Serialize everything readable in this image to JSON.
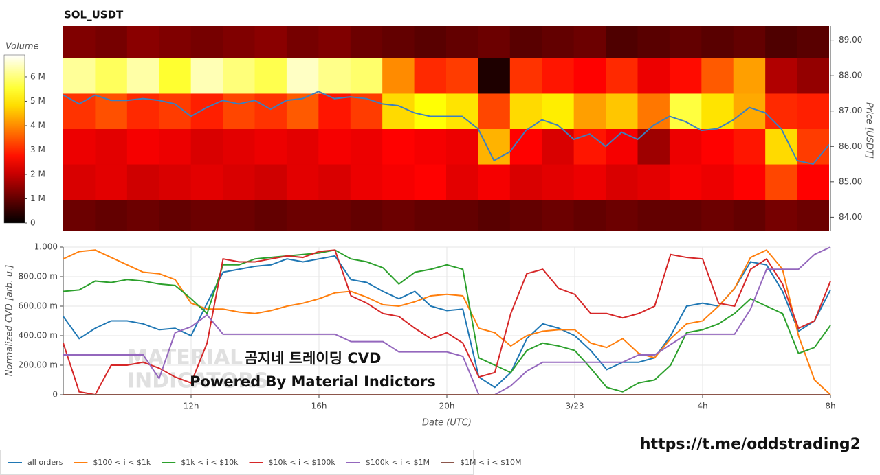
{
  "chart_data": [
    {
      "type": "heatmap",
      "title": "SOL_USDT",
      "colormap": "hot",
      "xlim": [
        8,
        32
      ],
      "ylim": [
        83.6,
        89.4
      ],
      "yticks": [
        {
          "value": 84,
          "label": "84.00"
        },
        {
          "value": 85,
          "label": "85.00"
        },
        {
          "value": 86,
          "label": "86.00"
        },
        {
          "value": 87,
          "label": "87.00"
        },
        {
          "value": 88,
          "label": "88.00"
        },
        {
          "value": 89,
          "label": "89.00"
        }
      ],
      "ylabel": "Price [USDT]",
      "x_bins": [
        8,
        9,
        10,
        11,
        12,
        13,
        14,
        15,
        16,
        17,
        18,
        19,
        20,
        21,
        22,
        23,
        24,
        25,
        26,
        27,
        28,
        29,
        30,
        31,
        32
      ],
      "y_bins": [
        83.5,
        84.5,
        85.5,
        86.5,
        87.5,
        88.5,
        89.5
      ],
      "values": [
        [
          1100000,
          1000000,
          1100000,
          1000000,
          1100000,
          1100000,
          1000000,
          1100000,
          1100000,
          1000000,
          1100000,
          1000000,
          1000000,
          900000,
          1000000,
          1100000,
          1000000,
          1100000,
          1000000,
          1000000,
          1100000,
          1000000,
          1200000,
          1100000
        ],
        [
          2200000,
          2300000,
          2100000,
          2200000,
          2300000,
          2200000,
          2100000,
          2300000,
          2200000,
          2400000,
          2500000,
          2600000,
          2300000,
          2500000,
          2200000,
          2300000,
          2400000,
          2200000,
          2300000,
          2500000,
          2400000,
          2600000,
          3300000,
          2600000
        ],
        [
          2400000,
          2300000,
          2500000,
          2400000,
          2200000,
          2300000,
          2400000,
          2300000,
          2500000,
          2400000,
          2600000,
          2500000,
          2400000,
          4400000,
          2600000,
          2200000,
          2800000,
          2500000,
          1600000,
          2400000,
          2600000,
          2800000,
          4800000,
          3200000
        ],
        [
          3100000,
          3400000,
          3000000,
          3200000,
          2900000,
          3300000,
          3100000,
          3500000,
          2800000,
          3200000,
          4800000,
          5200000,
          4900000,
          3300000,
          4800000,
          5000000,
          4200000,
          4600000,
          3800000,
          5600000,
          4900000,
          4300000,
          3000000,
          2900000
        ],
        [
          6200000,
          5800000,
          6300000,
          5500000,
          6400000,
          6000000,
          5700000,
          6500000,
          6100000,
          5900000,
          4000000,
          3000000,
          3200000,
          300000,
          3100000,
          2800000,
          2600000,
          3000000,
          2400000,
          2700000,
          3500000,
          4200000,
          1800000,
          1500000
        ],
        [
          1300000,
          1200000,
          1400000,
          1300000,
          1200000,
          1300000,
          1400000,
          1200000,
          1300000,
          1100000,
          1000000,
          900000,
          1000000,
          1100000,
          900000,
          1000000,
          1100000,
          800000,
          900000,
          1000000,
          900000,
          1000000,
          800000,
          900000
        ]
      ],
      "colorbar": {
        "title": "Volume",
        "lim": [
          0,
          6900000
        ],
        "ticks": [
          0,
          {
            "value": 1000000,
            "label": "1 M"
          },
          {
            "value": 2000000,
            "label": "2 M"
          },
          {
            "value": 3000000,
            "label": "3 M"
          },
          {
            "value": 4000000,
            "label": "4 M"
          },
          {
            "value": 5000000,
            "label": "5 M"
          },
          {
            "value": 6000000,
            "label": "6 M"
          }
        ]
      },
      "line": {
        "color": "#3b7fc0",
        "x": [
          8,
          8.5,
          9,
          9.5,
          10,
          10.5,
          11,
          11.5,
          12,
          12.5,
          13,
          13.5,
          14,
          14.5,
          15,
          15.5,
          16,
          16.5,
          17,
          17.5,
          18,
          18.5,
          19,
          19.5,
          20,
          20.5,
          21,
          21.5,
          22,
          22.5,
          23,
          23.5,
          24,
          24.5,
          25,
          25.5,
          26,
          26.5,
          27,
          27.5,
          28,
          28.5,
          29,
          29.5,
          30,
          30.5,
          31,
          31.5,
          32
        ],
        "values": [
          87.45,
          87.2,
          87.45,
          87.3,
          87.3,
          87.35,
          87.3,
          87.2,
          86.85,
          87.1,
          87.3,
          87.2,
          87.3,
          87.05,
          87.3,
          87.35,
          87.55,
          87.35,
          87.4,
          87.35,
          87.2,
          87.15,
          86.95,
          86.85,
          86.85,
          86.85,
          86.5,
          85.6,
          85.85,
          86.45,
          86.75,
          86.6,
          86.2,
          86.35,
          86.0,
          86.4,
          86.2,
          86.6,
          86.85,
          86.7,
          86.45,
          86.5,
          86.75,
          87.1,
          86.95,
          86.5,
          85.6,
          85.5,
          86.05
        ]
      }
    },
    {
      "type": "line",
      "xlim": [
        8,
        32
      ],
      "xticks": [
        {
          "value": 12,
          "label": "12h"
        },
        {
          "value": 16,
          "label": "16h"
        },
        {
          "value": 20,
          "label": "20h"
        },
        {
          "value": 24,
          "label": "3/23"
        },
        {
          "value": 28,
          "label": "4h"
        },
        {
          "value": 32,
          "label": "8h"
        }
      ],
      "ylim": [
        0,
        1
      ],
      "yticks": [
        0,
        {
          "value": 0.2,
          "label": "200.00 m"
        },
        {
          "value": 0.4,
          "label": "400.00 m"
        },
        {
          "value": 0.6,
          "label": "600.00 m"
        },
        {
          "value": 0.8,
          "label": "800.00 m"
        },
        {
          "value": 1,
          "label": "1.000"
        }
      ],
      "xlabel": "Date (UTC)",
      "ylabel": "Normalized CVD [arb. u.]",
      "grid": true,
      "legend": "bottom-left",
      "annotations": [
        "곰지네 트레이딩 CVD",
        "Powered By Material Indictors"
      ],
      "watermark": [
        "MATERIAL",
        "INDICATORS"
      ],
      "x": [
        8,
        8.5,
        9,
        9.5,
        10,
        10.5,
        11,
        11.5,
        12,
        12.5,
        13,
        13.5,
        14,
        14.5,
        15,
        15.5,
        16,
        16.5,
        17,
        17.5,
        18,
        18.5,
        19,
        19.5,
        20,
        20.5,
        21,
        21.5,
        22,
        22.5,
        23,
        23.5,
        24,
        24.5,
        25,
        25.5,
        26,
        26.5,
        27,
        27.5,
        28,
        28.5,
        29,
        29.5,
        30,
        30.5,
        31,
        31.5,
        32
      ],
      "series": [
        {
          "name": "all orders",
          "color": "#1f77b4",
          "values": [
            0.53,
            0.38,
            0.45,
            0.5,
            0.5,
            0.48,
            0.44,
            0.45,
            0.4,
            0.62,
            0.83,
            0.85,
            0.87,
            0.88,
            0.92,
            0.9,
            0.92,
            0.94,
            0.78,
            0.76,
            0.7,
            0.65,
            0.7,
            0.6,
            0.57,
            0.58,
            0.12,
            0.05,
            0.15,
            0.38,
            0.48,
            0.45,
            0.4,
            0.3,
            0.17,
            0.22,
            0.22,
            0.25,
            0.4,
            0.6,
            0.62,
            0.6,
            0.72,
            0.9,
            0.88,
            0.7,
            0.43,
            0.5,
            0.71
          ]
        },
        {
          "name": "$100 < i < $1k",
          "color": "#ff7f0e",
          "values": [
            0.92,
            0.97,
            0.98,
            0.93,
            0.88,
            0.83,
            0.82,
            0.78,
            0.62,
            0.58,
            0.58,
            0.56,
            0.55,
            0.57,
            0.6,
            0.62,
            0.65,
            0.69,
            0.7,
            0.66,
            0.61,
            0.6,
            0.63,
            0.67,
            0.68,
            0.67,
            0.45,
            0.42,
            0.33,
            0.4,
            0.43,
            0.44,
            0.44,
            0.35,
            0.32,
            0.38,
            0.28,
            0.25,
            0.38,
            0.48,
            0.5,
            0.6,
            0.72,
            0.93,
            0.98,
            0.85,
            0.4,
            0.1,
            0.0
          ]
        },
        {
          "name": "$1k < i < $10k",
          "color": "#2ca02c",
          "values": [
            0.7,
            0.71,
            0.77,
            0.76,
            0.78,
            0.77,
            0.75,
            0.74,
            0.65,
            0.55,
            0.88,
            0.88,
            0.92,
            0.93,
            0.94,
            0.95,
            0.96,
            0.98,
            0.92,
            0.9,
            0.86,
            0.75,
            0.83,
            0.85,
            0.88,
            0.85,
            0.25,
            0.2,
            0.15,
            0.3,
            0.35,
            0.33,
            0.3,
            0.18,
            0.05,
            0.02,
            0.08,
            0.1,
            0.2,
            0.42,
            0.44,
            0.48,
            0.55,
            0.65,
            0.6,
            0.55,
            0.28,
            0.32,
            0.47
          ]
        },
        {
          "name": "$10k < i < $100k",
          "color": "#d62728",
          "values": [
            0.35,
            0.02,
            0.0,
            0.2,
            0.2,
            0.22,
            0.18,
            0.12,
            0.08,
            0.35,
            0.92,
            0.9,
            0.9,
            0.92,
            0.94,
            0.93,
            0.97,
            0.98,
            0.67,
            0.62,
            0.55,
            0.53,
            0.45,
            0.38,
            0.42,
            0.35,
            0.12,
            0.15,
            0.55,
            0.82,
            0.85,
            0.72,
            0.68,
            0.55,
            0.55,
            0.52,
            0.55,
            0.6,
            0.95,
            0.93,
            0.92,
            0.62,
            0.6,
            0.85,
            0.92,
            0.75,
            0.45,
            0.5,
            0.77
          ]
        },
        {
          "name": "$100k < i < $1M",
          "color": "#9467bd",
          "values": [
            0.27,
            0.27,
            0.27,
            0.27,
            0.27,
            0.27,
            0.11,
            0.42,
            0.46,
            0.54,
            0.41,
            0.41,
            0.41,
            0.41,
            0.41,
            0.41,
            0.41,
            0.41,
            0.36,
            0.36,
            0.36,
            0.29,
            0.29,
            0.29,
            0.29,
            0.26,
            0.0,
            0.0,
            0.06,
            0.16,
            0.22,
            0.22,
            0.22,
            0.22,
            0.22,
            0.22,
            0.27,
            0.27,
            0.34,
            0.41,
            0.41,
            0.41,
            0.41,
            0.58,
            0.85,
            0.85,
            0.85,
            0.95,
            1.0
          ]
        },
        {
          "name": "$1M < i < $10M",
          "color": "#8c564b",
          "values": [
            0,
            0,
            0,
            0,
            0,
            0,
            0,
            0,
            0,
            0,
            0,
            0,
            0,
            0,
            0,
            0,
            0,
            0,
            0,
            0,
            0,
            0,
            0,
            0,
            0,
            0,
            0,
            0,
            0,
            0,
            0,
            0,
            0,
            0,
            0,
            0,
            0,
            0,
            0,
            0,
            0,
            0,
            0,
            0,
            0,
            0,
            0,
            0,
            0
          ]
        }
      ]
    }
  ],
  "footer_link": "https://t.me/oddstrading2"
}
